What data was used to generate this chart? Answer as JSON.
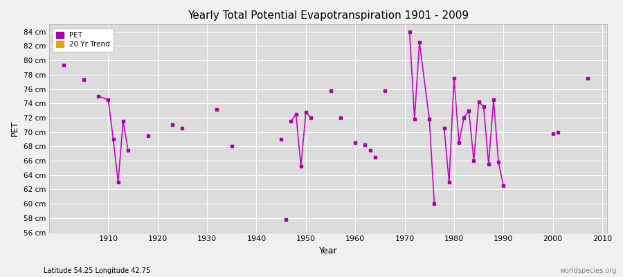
{
  "title": "Yearly Total Potential Evapotranspiration 1901 - 2009",
  "xlabel": "Year",
  "ylabel": "PET",
  "subtitle": "Latitude 54.25 Longitude 42.75",
  "watermark": "worldspecies.org",
  "ylim": [
    56,
    85
  ],
  "ytick_step": 2,
  "fig_bg_color": "#f0f0f0",
  "plot_bg_color": "#dcdcdc",
  "grid_color": "#ffffff",
  "line_color": "#cc00cc",
  "marker_color": "#aa00aa",
  "legend_pet_color": "#aa00aa",
  "legend_trend_color": "#ddaa00",
  "xlim": [
    1898,
    2011
  ],
  "xtick_start": 1910,
  "xtick_step": 10,
  "pet_data": [
    [
      1901,
      79.3
    ],
    [
      1905,
      77.3
    ],
    [
      1908,
      75.0
    ],
    [
      1910,
      74.5
    ],
    [
      1911,
      69.0
    ],
    [
      1912,
      63.0
    ],
    [
      1913,
      71.5
    ],
    [
      1914,
      67.5
    ],
    [
      1918,
      69.5
    ],
    [
      1923,
      71.0
    ],
    [
      1925,
      70.5
    ],
    [
      1932,
      73.2
    ],
    [
      1935,
      68.0
    ],
    [
      1945,
      69.0
    ],
    [
      1946,
      57.8
    ],
    [
      1947,
      71.5
    ],
    [
      1948,
      72.5
    ],
    [
      1949,
      65.2
    ],
    [
      1950,
      72.8
    ],
    [
      1951,
      72.0
    ],
    [
      1955,
      75.8
    ],
    [
      1957,
      72.0
    ],
    [
      1960,
      68.5
    ],
    [
      1962,
      68.2
    ],
    [
      1963,
      67.5
    ],
    [
      1964,
      66.5
    ],
    [
      1966,
      75.8
    ],
    [
      1971,
      84.0
    ],
    [
      1972,
      71.8
    ],
    [
      1973,
      82.5
    ],
    [
      1975,
      71.8
    ],
    [
      1976,
      60.0
    ],
    [
      1978,
      70.5
    ],
    [
      1979,
      63.0
    ],
    [
      1980,
      77.5
    ],
    [
      1981,
      68.5
    ],
    [
      1982,
      72.0
    ],
    [
      1983,
      73.0
    ],
    [
      1984,
      66.0
    ],
    [
      1985,
      74.2
    ],
    [
      1986,
      73.5
    ],
    [
      1987,
      65.5
    ],
    [
      1988,
      74.5
    ],
    [
      1989,
      65.8
    ],
    [
      1990,
      62.5
    ],
    [
      2000,
      69.8
    ],
    [
      2001,
      70.0
    ],
    [
      2007,
      77.5
    ]
  ],
  "connected_groups": [
    [
      1908,
      1910,
      1911,
      1912,
      1913,
      1914
    ],
    [
      1947,
      1948,
      1949,
      1950,
      1951
    ],
    [
      1971,
      1972,
      1973,
      1975,
      1976
    ],
    [
      1978,
      1979,
      1980,
      1981,
      1982,
      1983,
      1984,
      1985,
      1986,
      1987,
      1988,
      1989,
      1990
    ]
  ]
}
